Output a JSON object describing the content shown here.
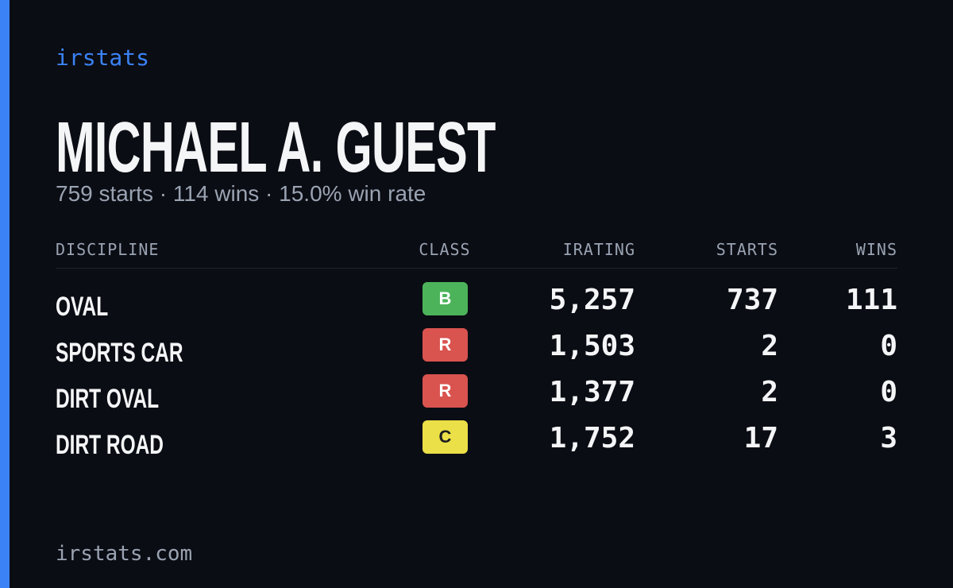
{
  "header": {
    "brand": "irstats",
    "name": "MICHAEL A. GUEST",
    "summary": "759 starts · 114 wins · 15.0% win rate"
  },
  "table": {
    "columns": [
      "DISCIPLINE",
      "CLASS",
      "IRATING",
      "STARTS",
      "WINS"
    ],
    "rows": [
      {
        "discipline": "OVAL",
        "class": "B",
        "class_color": "#4cb35a",
        "irating": "5,257",
        "starts": "737",
        "wins": "111"
      },
      {
        "discipline": "SPORTS CAR",
        "class": "R",
        "class_color": "#d9534f",
        "irating": "1,503",
        "starts": "2",
        "wins": "0"
      },
      {
        "discipline": "DIRT OVAL",
        "class": "R",
        "class_color": "#d9534f",
        "irating": "1,377",
        "starts": "2",
        "wins": "0"
      },
      {
        "discipline": "DIRT ROAD",
        "class": "C",
        "class_color": "#ebe047",
        "irating": "1,752",
        "starts": "17",
        "wins": "3"
      }
    ]
  },
  "footer": {
    "site": "irstats.com"
  }
}
